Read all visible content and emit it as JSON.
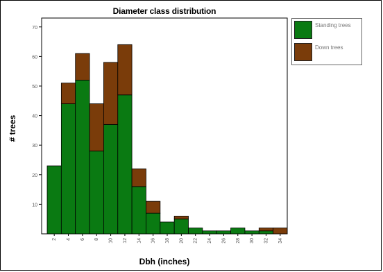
{
  "chart_data": {
    "type": "bar",
    "stacked": true,
    "title": "Diameter class distribution",
    "xlabel": "Dbh (inches)",
    "ylabel": "# trees",
    "categories": [
      "2",
      "4",
      "6",
      "8",
      "10",
      "12",
      "14",
      "16",
      "18",
      "20",
      "22",
      "24",
      "26",
      "28",
      "30",
      "32",
      "34"
    ],
    "series": [
      {
        "name": "Standing trees",
        "color": "#0a7a12",
        "values": [
          23,
          44,
          52,
          28,
          37,
          47,
          16,
          7,
          4,
          5,
          2,
          1,
          1,
          2,
          1,
          1,
          0
        ]
      },
      {
        "name": "Down trees",
        "color": "#7a3c0a",
        "values": [
          0,
          7,
          9,
          16,
          21,
          17,
          6,
          4,
          0,
          1,
          0,
          0,
          0,
          0,
          0,
          1,
          2
        ]
      }
    ],
    "ylim": [
      0,
      73
    ],
    "yticks": [
      10,
      20,
      30,
      40,
      50,
      60,
      70
    ],
    "grid": false,
    "legend": "right"
  }
}
